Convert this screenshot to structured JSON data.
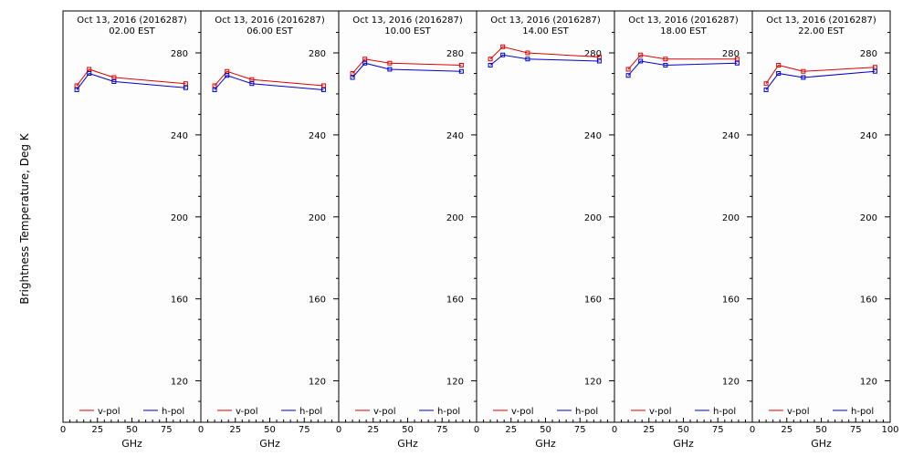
{
  "chart_data": {
    "type": "line",
    "ylabel": "Brightness Temperature, Deg K",
    "xlabel": "GHz",
    "xlim": [
      0,
      100
    ],
    "ylim": [
      100,
      295
    ],
    "yticks": [
      120,
      160,
      200,
      240,
      280
    ],
    "xticks": [
      "0",
      "25",
      "50",
      "75",
      "100"
    ],
    "legend_position": "bottom",
    "grid": false,
    "colors": {
      "v-pol": "#e00000",
      "h-pol": "#0000d0"
    },
    "panels": [
      {
        "title_line1": "Oct 13, 2016 (2016287)",
        "title_line2": "02.00 EST",
        "series": [
          {
            "name": "v-pol",
            "x": [
              10,
              19,
              37,
              89
            ],
            "y": [
              264,
              272,
              268,
              265
            ]
          },
          {
            "name": "h-pol",
            "x": [
              10,
              19,
              37,
              89
            ],
            "y": [
              262,
              270,
              266,
              263
            ]
          }
        ]
      },
      {
        "title_line1": "Oct 13, 2016 (2016287)",
        "title_line2": "06.00 EST",
        "series": [
          {
            "name": "v-pol",
            "x": [
              10,
              19,
              37,
              89
            ],
            "y": [
              264,
              271,
              267,
              264
            ]
          },
          {
            "name": "h-pol",
            "x": [
              10,
              19,
              37,
              89
            ],
            "y": [
              262,
              269,
              265,
              262
            ]
          }
        ]
      },
      {
        "title_line1": "Oct 13, 2016 (2016287)",
        "title_line2": "10.00 EST",
        "series": [
          {
            "name": "v-pol",
            "x": [
              10,
              19,
              37,
              89
            ],
            "y": [
              270,
              277,
              275,
              274
            ]
          },
          {
            "name": "h-pol",
            "x": [
              10,
              19,
              37,
              89
            ],
            "y": [
              268,
              275,
              272,
              271
            ]
          }
        ]
      },
      {
        "title_line1": "Oct 13, 2016 (2016287)",
        "title_line2": "14.00 EST",
        "series": [
          {
            "name": "v-pol",
            "x": [
              10,
              19,
              37,
              89
            ],
            "y": [
              277,
              283,
              280,
              278
            ]
          },
          {
            "name": "h-pol",
            "x": [
              10,
              19,
              37,
              89
            ],
            "y": [
              274,
              279,
              277,
              276
            ]
          }
        ]
      },
      {
        "title_line1": "Oct 13, 2016 (2016287)",
        "title_line2": "18.00 EST",
        "series": [
          {
            "name": "v-pol",
            "x": [
              10,
              19,
              37,
              89
            ],
            "y": [
              272,
              279,
              277,
              277
            ]
          },
          {
            "name": "h-pol",
            "x": [
              10,
              19,
              37,
              89
            ],
            "y": [
              269,
              276,
              274,
              275
            ]
          }
        ]
      },
      {
        "title_line1": "Oct 13, 2016 (2016287)",
        "title_line2": "22.00 EST",
        "series": [
          {
            "name": "v-pol",
            "x": [
              10,
              19,
              37,
              89
            ],
            "y": [
              265,
              274,
              271,
              273
            ]
          },
          {
            "name": "h-pol",
            "x": [
              10,
              19,
              37,
              89
            ],
            "y": [
              262,
              270,
              268,
              271
            ]
          }
        ]
      }
    ]
  }
}
